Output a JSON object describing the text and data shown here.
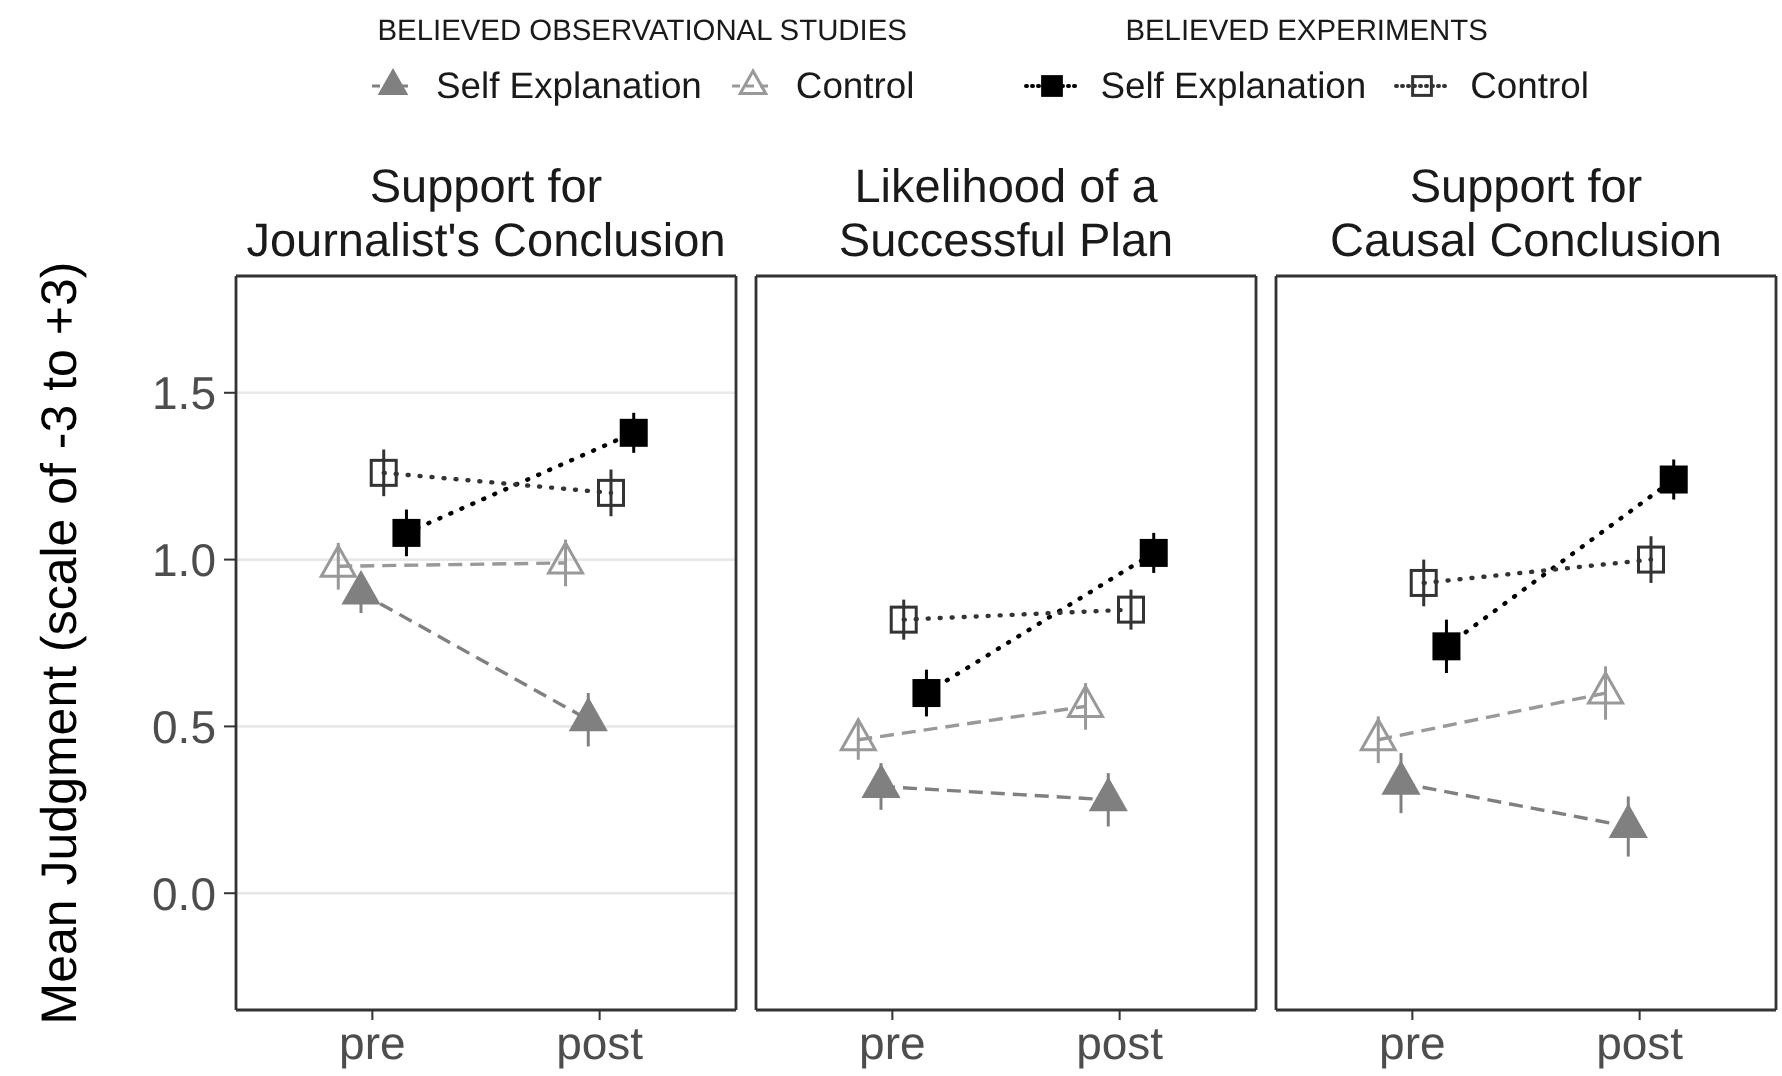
{
  "chart_data": [
    {
      "type": "line",
      "title": "Support for\nJournalist's Conclusion",
      "ylabel": "Mean Judgment (scale of -3 to +3)",
      "legend_title": "BELIEVED OBSERVATIONAL STUDIES",
      "annotations": [
        "BELIEVED EXPERIMENTS"
      ],
      "categories": [
        "pre",
        "post"
      ],
      "series": [
        {
          "name": "Self Explanation",
          "color": "#808080",
          "marker": "triangle",
          "line_style": "dashed",
          "values": [
            0.9,
            0.52
          ],
          "errors": [
            0.06,
            0.08
          ]
        },
        {
          "name": "Control",
          "color": "#999999",
          "marker": "triangle",
          "line_style": "dashed",
          "values": [
            0.98,
            0.99
          ],
          "errors": [
            0.07,
            0.07
          ]
        },
        {
          "name": "Self Explanation",
          "color": "#000000",
          "marker": "square",
          "line_style": "dotted",
          "values": [
            1.08,
            1.38
          ],
          "errors": [
            0.07,
            0.06
          ]
        },
        {
          "name": "Control",
          "color": "#333333",
          "marker": "square",
          "line_style": "dotted",
          "values": [
            1.26,
            1.2
          ],
          "errors": [
            0.07,
            0.07
          ]
        }
      ],
      "ylim": [
        -0.35,
        1.85
      ],
      "yticks": [
        {
          "value": 0,
          "label": "0.0"
        },
        0.5,
        {
          "value": 1,
          "label": "1.0"
        },
        1.5
      ],
      "grid": "y",
      "legend": "top"
    },
    {
      "type": "line",
      "title": "Likelihood of a\nSuccessful Plan",
      "categories": [
        "pre",
        "post"
      ],
      "series": [
        {
          "color": "#808080",
          "marker": "triangle",
          "line_style": "dashed",
          "values": [
            0.32,
            0.28
          ],
          "errors": [
            0.07,
            0.08
          ]
        },
        {
          "color": "#999999",
          "marker": "triangle",
          "line_style": "dashed",
          "values": [
            0.46,
            0.56
          ],
          "errors": [
            0.06,
            0.07
          ]
        },
        {
          "color": "#000000",
          "marker": "square",
          "line_style": "dotted",
          "values": [
            0.6,
            1.02
          ],
          "errors": [
            0.07,
            0.06
          ]
        },
        {
          "color": "#333333",
          "marker": "square",
          "line_style": "dotted",
          "values": [
            0.82,
            0.85
          ],
          "errors": [
            0.06,
            0.06
          ]
        }
      ],
      "ylim": [
        -0.35,
        1.85
      ],
      "yticks": [
        0,
        0.5,
        1,
        1.5
      ],
      "grid": "y",
      "tick_labels": "x"
    },
    {
      "type": "line",
      "title": "Support for\nCausal Conclusion",
      "categories": [
        "pre",
        "post"
      ],
      "series": [
        {
          "color": "#808080",
          "marker": "triangle",
          "line_style": "dashed",
          "values": [
            0.33,
            0.2
          ],
          "errors": [
            0.09,
            0.09
          ]
        },
        {
          "color": "#999999",
          "marker": "triangle",
          "line_style": "dashed",
          "values": [
            0.46,
            0.6
          ],
          "errors": [
            0.07,
            0.08
          ]
        },
        {
          "color": "#000000",
          "marker": "square",
          "line_style": "dotted",
          "values": [
            0.74,
            1.24
          ],
          "errors": [
            0.08,
            0.06
          ]
        },
        {
          "color": "#333333",
          "marker": "square",
          "line_style": "dotted",
          "values": [
            0.93,
            1.0
          ],
          "errors": [
            0.07,
            0.07
          ]
        }
      ],
      "ylim": [
        -0.35,
        1.85
      ],
      "yticks": [
        0,
        0.5,
        1,
        1.5
      ],
      "grid": "y",
      "tick_labels": "x"
    }
  ]
}
